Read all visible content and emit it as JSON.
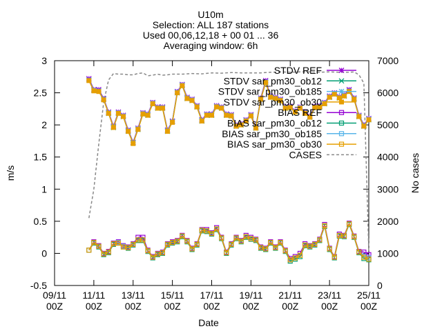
{
  "chart_data": {
    "type": "line",
    "title_lines": [
      "U10m",
      "Selection: ALL    187 stations",
      "Used 00,06,12,18 + 00 01 ... 36",
      "Averaging window:  6h"
    ],
    "xlabel": "Date",
    "ylabel": "m/s",
    "y2label": "No cases",
    "ylim": [
      -0.5,
      3
    ],
    "y2lim": [
      0,
      7000
    ],
    "xlim": [
      0,
      16
    ],
    "yticks": [
      -0.5,
      0,
      0.5,
      1,
      1.5,
      2,
      2.5,
      3
    ],
    "y2ticks": [
      0,
      1000,
      2000,
      3000,
      4000,
      5000,
      6000,
      7000
    ],
    "xticks": [
      {
        "pos": 0,
        "line1": "09/11",
        "line2": "00Z"
      },
      {
        "pos": 2,
        "line1": "11/11",
        "line2": "00Z"
      },
      {
        "pos": 4,
        "line1": "13/11",
        "line2": "00Z"
      },
      {
        "pos": 6,
        "line1": "15/11",
        "line2": "00Z"
      },
      {
        "pos": 8,
        "line1": "17/11",
        "line2": "00Z"
      },
      {
        "pos": 10,
        "line1": "19/11",
        "line2": "00Z"
      },
      {
        "pos": 12,
        "line1": "21/11",
        "line2": "00Z"
      },
      {
        "pos": 14,
        "line1": "23/11",
        "line2": "00Z"
      },
      {
        "pos": 16,
        "line1": "25/11",
        "line2": "00Z"
      }
    ],
    "grid": false,
    "legend_position": "top-right",
    "legend": [
      {
        "label": "STDV REF",
        "color": "#9400d3",
        "marker": "plus-x",
        "dash": "solid"
      },
      {
        "label": "STDV sar_pm30_ob12",
        "color": "#009e73",
        "marker": "x",
        "dash": "solid"
      },
      {
        "label": "STDV sar_pm30_ob185",
        "color": "#56b4e9",
        "marker": "star",
        "dash": "solid"
      },
      {
        "label": "STDV sar_pm30_ob30",
        "color": "#e69f00",
        "marker": "boxfill",
        "dash": "solid"
      },
      {
        "label": "BIAS REF",
        "color": "#9400d3",
        "marker": "box",
        "dash": "solid"
      },
      {
        "label": "BIAS sar_pm30_ob12",
        "color": "#009e73",
        "marker": "box",
        "dash": "solid"
      },
      {
        "label": "BIAS sar_pm30_ob185",
        "color": "#56b4e9",
        "marker": "box",
        "dash": "solid"
      },
      {
        "label": "BIAS sar_pm30_ob30",
        "color": "#e69f00",
        "marker": "box",
        "dash": "solid"
      },
      {
        "label": "CASES",
        "color": "#888888",
        "marker": "none",
        "dash": "dashed"
      }
    ],
    "x": [
      1.75,
      2.0,
      2.25,
      2.5,
      2.75,
      3.0,
      3.25,
      3.5,
      3.75,
      4.0,
      4.25,
      4.5,
      4.75,
      5.0,
      5.25,
      5.5,
      5.75,
      6.0,
      6.25,
      6.5,
      6.75,
      7.0,
      7.25,
      7.5,
      7.75,
      8.0,
      8.25,
      8.5,
      8.75,
      9.0,
      9.25,
      9.5,
      9.75,
      10.0,
      10.25,
      10.5,
      10.75,
      11.0,
      11.25,
      11.5,
      11.75,
      12.0,
      12.25,
      12.5,
      12.75,
      13.0,
      13.25,
      13.5,
      13.75,
      14.0,
      14.25,
      14.5,
      14.75,
      15.0,
      15.25,
      15.5,
      15.75,
      16.0
    ],
    "stdv_ref": [
      2.72,
      2.55,
      2.55,
      2.41,
      2.2,
      1.98,
      2.2,
      2.15,
      1.92,
      1.73,
      1.95,
      2.19,
      2.17,
      2.35,
      2.28,
      2.28,
      1.92,
      2.06,
      2.52,
      2.63,
      2.43,
      2.4,
      2.3,
      2.08,
      2.17,
      2.17,
      2.3,
      2.28,
      2.17,
      2.16,
      2.0,
      2.02,
      2.08,
      2.16,
      1.97,
      2.42,
      2.69,
      2.45,
      2.43,
      2.4,
      2.28,
      2.29,
      2.22,
      2.28,
      2.2,
      2.14,
      2.29,
      2.3,
      2.35,
      2.45,
      2.5,
      2.44,
      2.47,
      2.55,
      2.42,
      2.15,
      2.0,
      2.1
    ],
    "stdv_ob12": [
      2.7,
      2.54,
      2.53,
      2.4,
      2.18,
      1.96,
      2.18,
      2.13,
      1.9,
      1.72,
      1.93,
      2.17,
      2.15,
      2.33,
      2.26,
      2.26,
      1.9,
      2.05,
      2.5,
      2.61,
      2.41,
      2.38,
      2.28,
      2.06,
      2.15,
      2.15,
      2.28,
      2.26,
      2.15,
      2.14,
      1.98,
      2.0,
      2.06,
      2.14,
      1.95,
      2.4,
      2.66,
      2.43,
      2.41,
      2.38,
      2.26,
      2.27,
      2.2,
      2.26,
      2.18,
      2.12,
      2.27,
      2.28,
      2.33,
      2.43,
      2.48,
      2.42,
      2.45,
      2.52,
      2.4,
      2.13,
      1.98,
      2.08
    ],
    "stdv_ob185": [
      2.7,
      2.54,
      2.53,
      2.4,
      2.19,
      1.97,
      2.19,
      2.14,
      1.91,
      1.72,
      1.94,
      2.18,
      2.16,
      2.34,
      2.27,
      2.27,
      1.91,
      2.05,
      2.51,
      2.62,
      2.42,
      2.39,
      2.29,
      2.07,
      2.16,
      2.16,
      2.29,
      2.27,
      2.16,
      2.15,
      1.99,
      2.01,
      2.07,
      2.15,
      1.96,
      2.41,
      2.67,
      2.44,
      2.42,
      2.39,
      2.27,
      2.28,
      2.21,
      2.27,
      2.19,
      2.13,
      2.28,
      2.29,
      2.34,
      2.44,
      2.49,
      2.43,
      2.46,
      2.53,
      2.41,
      2.14,
      1.99,
      2.09
    ],
    "stdv_ob30": [
      2.69,
      2.53,
      2.52,
      2.39,
      2.18,
      1.96,
      2.18,
      2.13,
      1.9,
      1.71,
      1.93,
      2.17,
      2.15,
      2.33,
      2.26,
      2.26,
      1.9,
      2.04,
      2.5,
      2.61,
      2.41,
      2.38,
      2.28,
      2.06,
      2.15,
      2.15,
      2.28,
      2.26,
      2.15,
      2.14,
      1.98,
      2.0,
      2.06,
      2.14,
      1.95,
      2.4,
      2.66,
      2.43,
      2.41,
      2.38,
      2.26,
      2.27,
      2.2,
      2.26,
      2.18,
      2.12,
      2.27,
      2.28,
      2.33,
      2.43,
      2.48,
      2.42,
      2.45,
      2.52,
      2.4,
      2.13,
      1.98,
      2.08
    ],
    "bias_ref": [
      0.05,
      0.18,
      0.12,
      0.0,
      0.03,
      0.16,
      0.18,
      0.12,
      0.1,
      0.15,
      0.25,
      0.25,
      0.05,
      -0.05,
      0.0,
      0.02,
      0.15,
      0.18,
      0.2,
      0.28,
      0.2,
      0.08,
      0.15,
      0.37,
      0.37,
      0.32,
      0.4,
      0.25,
      0.02,
      0.15,
      0.25,
      0.2,
      0.28,
      0.25,
      0.22,
      0.1,
      0.08,
      0.18,
      0.1,
      0.18,
      0.05,
      -0.08,
      -0.05,
      0.0,
      0.15,
      0.12,
      0.15,
      0.22,
      0.45,
      0.08,
      -0.05,
      0.3,
      0.28,
      0.47,
      0.27,
      0.03,
      0.02,
      -0.02
    ],
    "bias_ob12": [
      0.05,
      0.16,
      0.1,
      -0.02,
      0.01,
      0.14,
      0.16,
      0.1,
      0.08,
      0.13,
      0.2,
      0.2,
      0.03,
      -0.07,
      -0.02,
      0.0,
      0.13,
      0.16,
      0.18,
      0.26,
      0.18,
      0.06,
      0.13,
      0.35,
      0.34,
      0.3,
      0.37,
      0.23,
      0.0,
      0.13,
      0.23,
      0.18,
      0.25,
      0.22,
      0.2,
      0.08,
      0.06,
      0.16,
      0.08,
      0.16,
      0.03,
      -0.12,
      -0.09,
      -0.05,
      0.12,
      0.1,
      0.13,
      0.2,
      0.42,
      0.06,
      -0.07,
      0.27,
      0.26,
      0.45,
      0.25,
      0.01,
      -0.08,
      -0.1
    ],
    "bias_ob185": [
      0.05,
      0.17,
      0.11,
      -0.01,
      0.02,
      0.15,
      0.17,
      0.11,
      0.09,
      0.14,
      0.21,
      0.21,
      0.04,
      -0.06,
      -0.01,
      0.01,
      0.14,
      0.17,
      0.19,
      0.27,
      0.19,
      0.07,
      0.14,
      0.36,
      0.35,
      0.31,
      0.38,
      0.24,
      0.01,
      0.14,
      0.24,
      0.19,
      0.26,
      0.23,
      0.21,
      0.09,
      0.07,
      0.17,
      0.09,
      0.17,
      0.04,
      -0.1,
      -0.07,
      -0.03,
      0.13,
      0.11,
      0.14,
      0.21,
      0.43,
      0.07,
      -0.06,
      0.28,
      0.27,
      0.46,
      0.26,
      0.02,
      -0.04,
      -0.07
    ],
    "bias_ob30": [
      0.05,
      0.17,
      0.11,
      -0.01,
      0.02,
      0.15,
      0.16,
      0.1,
      0.09,
      0.14,
      0.21,
      0.21,
      0.04,
      -0.06,
      -0.01,
      0.01,
      0.14,
      0.17,
      0.19,
      0.27,
      0.19,
      0.07,
      0.14,
      0.36,
      0.35,
      0.31,
      0.38,
      0.24,
      0.01,
      0.14,
      0.24,
      0.19,
      0.26,
      0.23,
      0.21,
      0.09,
      0.07,
      0.17,
      0.09,
      0.17,
      0.04,
      -0.1,
      -0.07,
      -0.03,
      0.13,
      0.11,
      0.14,
      0.21,
      0.43,
      0.07,
      -0.06,
      0.28,
      0.27,
      0.46,
      0.26,
      0.02,
      -0.06,
      -0.09
    ],
    "cases_x": [
      1.75,
      2.0,
      2.25,
      2.5,
      2.75,
      3.0,
      3.25,
      3.5,
      3.75,
      4.0,
      4.25,
      4.5,
      4.75,
      5.0,
      5.25,
      5.5,
      5.75,
      6.0,
      6.5,
      7.0,
      7.5,
      8.0,
      8.5,
      9.0,
      9.5,
      10.0,
      10.5,
      11.0,
      11.5,
      12.0,
      12.5,
      13.0,
      13.5,
      14.0,
      14.5,
      15.0,
      15.25,
      15.5,
      15.75,
      16.0
    ],
    "cases": [
      2100,
      3000,
      4400,
      5700,
      6400,
      6600,
      6580,
      6580,
      6560,
      6560,
      6600,
      6620,
      6530,
      6550,
      6580,
      6550,
      6560,
      6580,
      6580,
      6600,
      6590,
      6620,
      6610,
      6630,
      6620,
      6620,
      6620,
      6640,
      6650,
      6640,
      6650,
      6650,
      6640,
      6650,
      6640,
      6640,
      6650,
      6560,
      6300,
      1050
    ]
  }
}
